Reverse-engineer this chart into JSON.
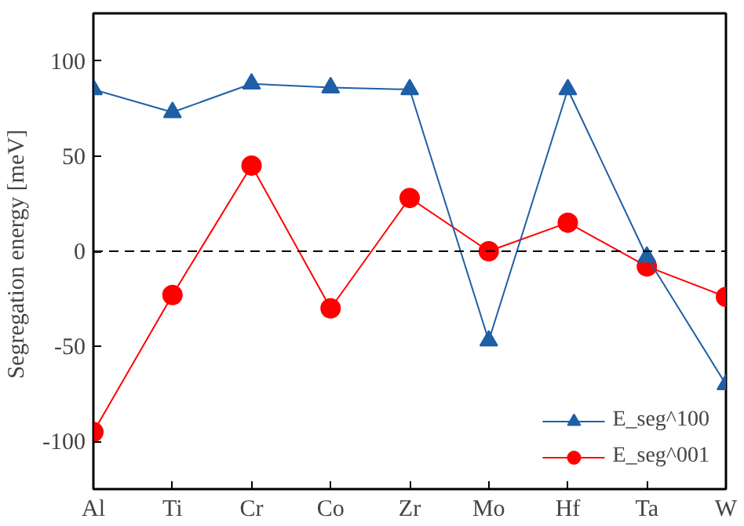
{
  "chart_data": {
    "type": "line",
    "ylabel": "Segregation energy  [meV]",
    "categories": [
      "Al",
      "Ti",
      "Cr",
      "Co",
      "Zr",
      "Mo",
      "Hf",
      "Ta",
      "W"
    ],
    "series": [
      {
        "name": "E_seg^100",
        "color": "#1f5fa6",
        "marker": "triangle",
        "values": [
          85,
          73,
          88,
          86,
          85,
          -47,
          85,
          -3,
          -70
        ]
      },
      {
        "name": "E_seg^001",
        "color": "#ff0000",
        "marker": "circle",
        "values": [
          -95,
          -23,
          45,
          -30,
          28,
          0,
          15,
          -8,
          -24
        ]
      }
    ],
    "ylim": [
      -125,
      125
    ],
    "yticks": [
      -100,
      -50,
      0,
      50,
      100
    ],
    "grid": false,
    "legend": "bottom right",
    "ref_lines": [
      {
        "axis": "y",
        "value": 0,
        "line_style": "dashed",
        "color": "#000000"
      }
    ]
  }
}
